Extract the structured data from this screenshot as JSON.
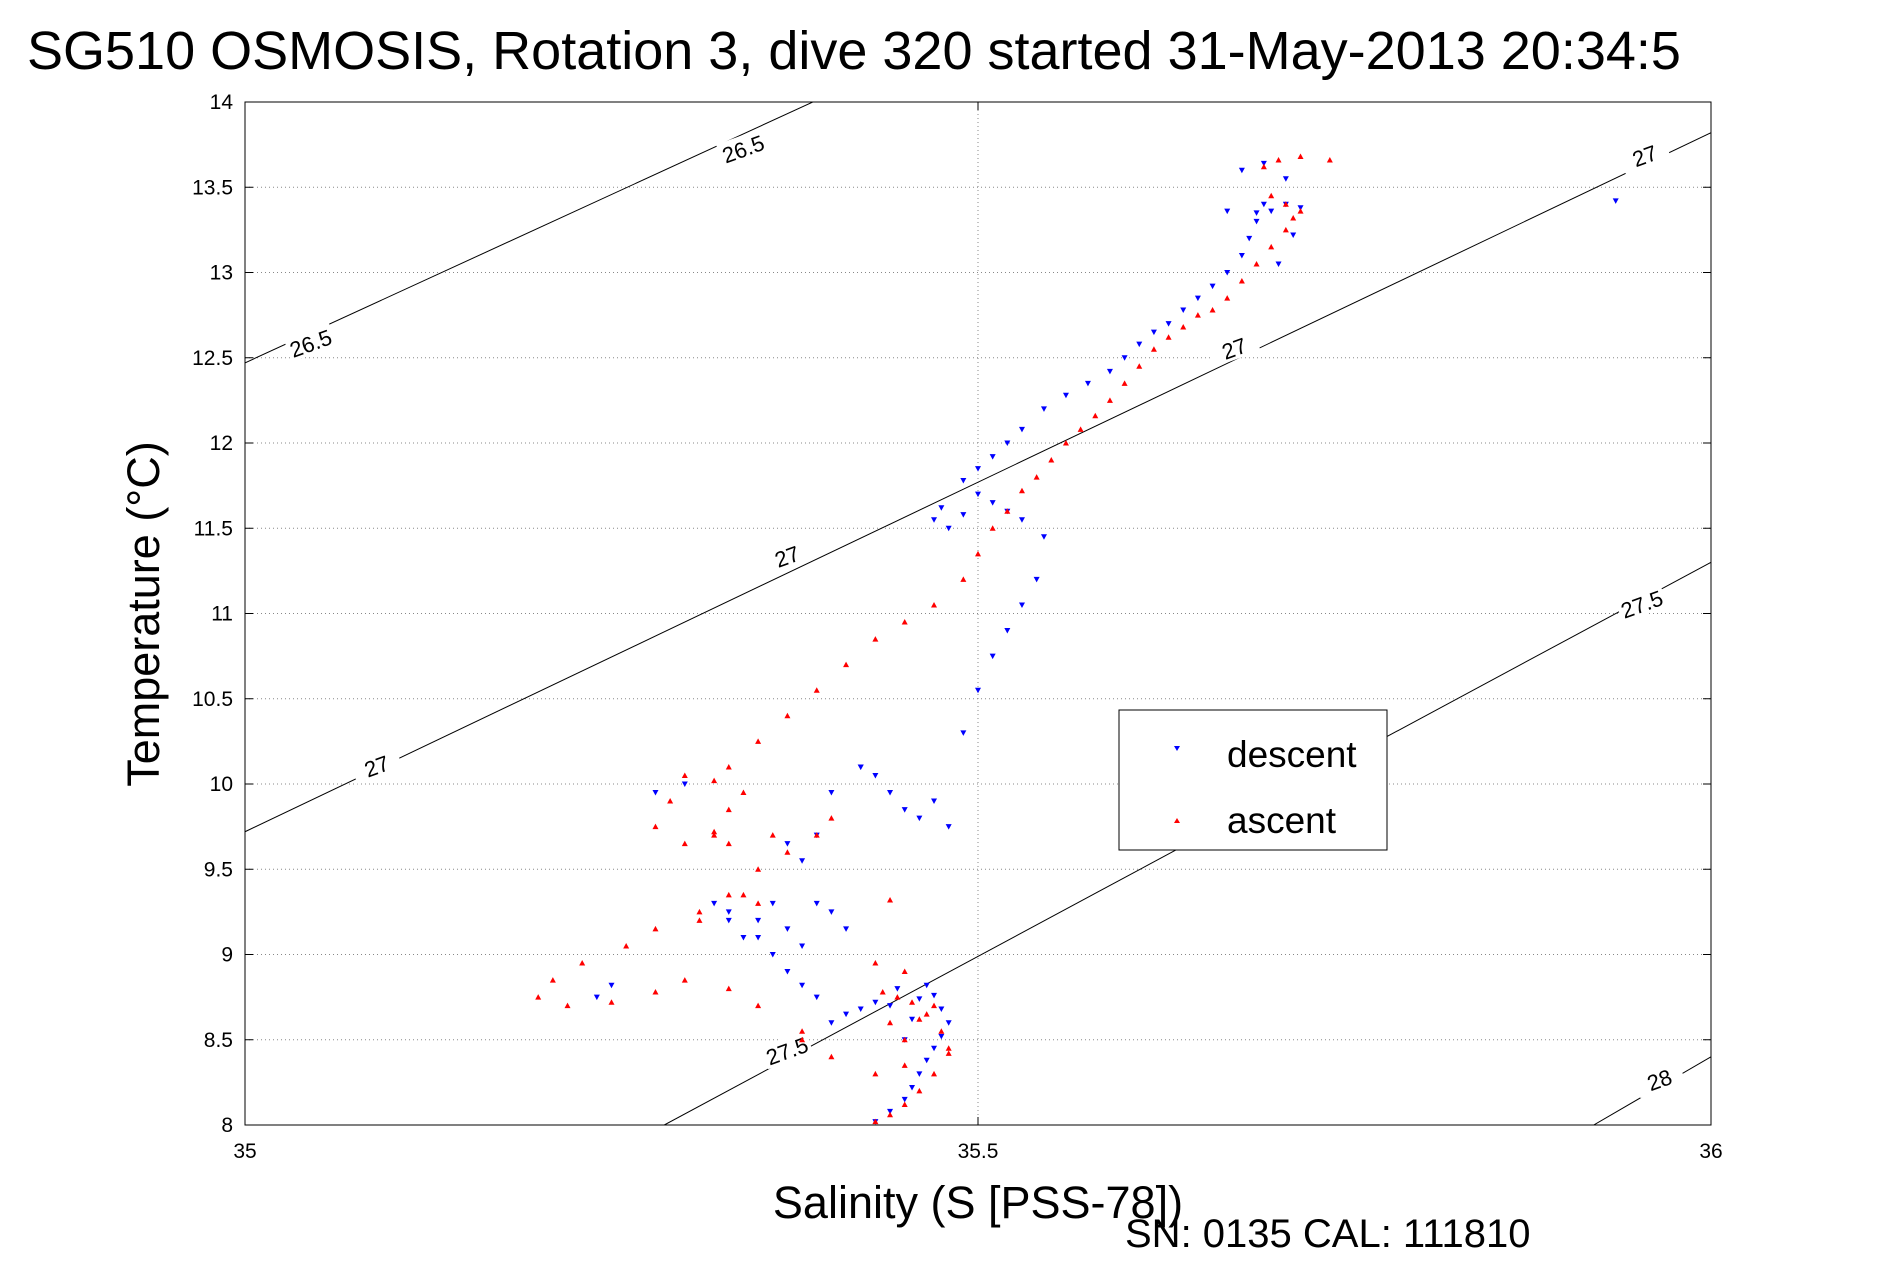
{
  "figure": {
    "title": "SG510 OSMOSIS, Rotation 3, dive 320 started 31-May-2013 20:34:5",
    "footer": "SN: 0135  CAL: 111810"
  },
  "chart_data": {
    "type": "scatter",
    "title": "SG510 OSMOSIS, Rotation 3, dive 320 started 31-May-2013 20:34:5",
    "xlabel": "Salinity (S [PSS-78])",
    "ylabel": "Temperature (°C)",
    "xlim": [
      35,
      36
    ],
    "ylim": [
      8,
      14
    ],
    "x_ticks": [
      "35",
      "35.5",
      "36"
    ],
    "y_ticks": [
      "8",
      "8.5",
      "9",
      "9.5",
      "10",
      "10.5",
      "11",
      "11.5",
      "12",
      "12.5",
      "13",
      "13.5",
      "14"
    ],
    "grid": true,
    "legend_position": "center-right",
    "legend": [
      "descent",
      "ascent"
    ],
    "colors": {
      "descent": "#0000ff",
      "ascent": "#ff0000",
      "contour": "#000000"
    },
    "density_contours": [
      {
        "label": "26.5",
        "points": [
          [
            35.0,
            12.47
          ],
          [
            35.4,
            14.05
          ]
        ]
      },
      {
        "label": "27",
        "points": [
          [
            35.0,
            9.72
          ],
          [
            36.0,
            13.82
          ]
        ]
      },
      {
        "label": "27.5",
        "points": [
          [
            35.286,
            8.0
          ],
          [
            36.0,
            11.3
          ]
        ]
      },
      {
        "label": "28",
        "points": [
          [
            35.92,
            8.0
          ],
          [
            36.0,
            8.4
          ]
        ]
      }
    ],
    "contour_labels": [
      {
        "text": "26.5",
        "x": 35.34,
        "y": 13.72,
        "angle": -20
      },
      {
        "text": "26.5",
        "x": 35.045,
        "y": 12.58,
        "angle": -20
      },
      {
        "text": "27",
        "x": 35.37,
        "y": 11.33,
        "angle": -20
      },
      {
        "text": "27",
        "x": 35.09,
        "y": 10.1,
        "angle": -20
      },
      {
        "text": "27",
        "x": 35.675,
        "y": 12.55,
        "angle": -20
      },
      {
        "text": "27",
        "x": 35.955,
        "y": 13.68,
        "angle": -20
      },
      {
        "text": "27.5",
        "x": 35.37,
        "y": 8.43,
        "angle": -20
      },
      {
        "text": "27.5",
        "x": 35.953,
        "y": 11.05,
        "angle": -20
      },
      {
        "text": "28",
        "x": 35.965,
        "y": 8.26,
        "angle": -20
      }
    ],
    "series": [
      {
        "name": "descent",
        "marker": "triangle-down",
        "color": "#0000ff",
        "x": [
          35.43,
          35.44,
          35.45,
          35.455,
          35.46,
          35.465,
          35.47,
          35.475,
          35.48,
          35.475,
          35.47,
          35.465,
          35.46,
          35.455,
          35.45,
          35.445,
          35.44,
          35.43,
          35.42,
          35.41,
          35.4,
          35.39,
          35.38,
          35.37,
          35.36,
          35.35,
          35.33,
          35.32,
          35.33,
          35.34,
          35.35,
          35.36,
          35.37,
          35.38,
          35.39,
          35.4,
          35.41,
          35.42,
          35.43,
          35.44,
          35.45,
          35.46,
          35.47,
          35.48,
          35.49,
          35.5,
          35.51,
          35.52,
          35.53,
          35.54,
          35.545,
          35.53,
          35.52,
          35.51,
          35.5,
          35.49,
          35.48,
          35.47,
          35.475,
          35.49,
          35.5,
          35.51,
          35.52,
          35.53,
          35.545,
          35.56,
          35.575,
          35.59,
          35.6,
          35.61,
          35.62,
          35.63,
          35.64,
          35.65,
          35.66,
          35.67,
          35.68,
          35.685,
          35.69,
          35.695,
          35.7,
          35.71,
          35.72,
          35.69,
          35.67,
          35.68,
          35.695,
          35.71,
          35.715,
          35.705,
          35.935,
          35.28,
          35.3,
          35.25,
          35.24,
          35.42,
          35.4,
          35.37,
          35.38,
          35.39
        ],
        "y": [
          8.02,
          8.08,
          8.15,
          8.22,
          8.3,
          8.38,
          8.45,
          8.52,
          8.6,
          8.68,
          8.76,
          8.82,
          8.74,
          8.62,
          8.5,
          8.8,
          8.7,
          8.72,
          8.68,
          8.65,
          8.6,
          8.75,
          8.82,
          8.9,
          9.0,
          9.1,
          9.2,
          9.3,
          9.25,
          9.1,
          9.2,
          9.3,
          9.15,
          9.05,
          9.3,
          9.25,
          9.15,
          10.1,
          10.05,
          9.95,
          9.85,
          9.8,
          9.9,
          9.75,
          10.3,
          10.55,
          10.75,
          10.9,
          11.05,
          11.2,
          11.45,
          11.55,
          11.6,
          11.65,
          11.7,
          11.58,
          11.5,
          11.55,
          11.62,
          11.78,
          11.85,
          11.92,
          12.0,
          12.08,
          12.2,
          12.28,
          12.35,
          12.42,
          12.5,
          12.58,
          12.65,
          12.7,
          12.78,
          12.85,
          12.92,
          13.0,
          13.1,
          13.2,
          13.3,
          13.4,
          13.36,
          13.4,
          13.38,
          13.35,
          13.36,
          13.6,
          13.64,
          13.55,
          13.22,
          13.05,
          13.42,
          9.95,
          10.0,
          8.82,
          8.75,
          10.1,
          9.95,
          9.65,
          9.55,
          9.7
        ]
      },
      {
        "name": "ascent",
        "marker": "triangle-up",
        "color": "#ff0000",
        "x": [
          35.43,
          35.44,
          35.45,
          35.46,
          35.47,
          35.48,
          35.475,
          35.465,
          35.455,
          35.445,
          35.435,
          35.44,
          35.45,
          35.46,
          35.47,
          35.48,
          35.45,
          35.43,
          35.4,
          35.38,
          35.35,
          35.33,
          35.3,
          35.28,
          35.25,
          35.22,
          35.2,
          35.21,
          35.23,
          35.26,
          35.28,
          35.31,
          35.33,
          35.35,
          35.37,
          35.39,
          35.4,
          35.36,
          35.33,
          35.32,
          35.33,
          35.34,
          35.32,
          35.3,
          35.29,
          35.28,
          35.3,
          35.32,
          35.33,
          35.35,
          35.37,
          35.39,
          35.41,
          35.43,
          35.45,
          35.47,
          35.49,
          35.5,
          35.51,
          35.52,
          35.53,
          35.54,
          35.55,
          35.56,
          35.57,
          35.58,
          35.59,
          35.6,
          35.61,
          35.62,
          35.63,
          35.64,
          35.65,
          35.66,
          35.67,
          35.68,
          35.69,
          35.7,
          35.71,
          35.715,
          35.72,
          35.71,
          35.7,
          35.695,
          35.705,
          35.72,
          35.74,
          35.35,
          35.34,
          35.31,
          35.44,
          35.45,
          35.43,
          35.38
        ],
        "y": [
          8.02,
          8.06,
          8.12,
          8.2,
          8.3,
          8.42,
          8.55,
          8.65,
          8.72,
          8.75,
          8.78,
          8.6,
          8.5,
          8.62,
          8.7,
          8.45,
          8.35,
          8.3,
          8.4,
          8.55,
          8.7,
          8.8,
          8.85,
          8.78,
          8.72,
          8.7,
          8.75,
          8.85,
          8.95,
          9.05,
          9.15,
          9.25,
          9.35,
          9.5,
          9.6,
          9.7,
          9.8,
          9.7,
          9.65,
          9.72,
          9.85,
          9.95,
          10.02,
          10.05,
          9.9,
          9.75,
          9.65,
          9.7,
          10.1,
          10.25,
          10.4,
          10.55,
          10.7,
          10.85,
          10.95,
          11.05,
          11.2,
          11.35,
          11.5,
          11.6,
          11.72,
          11.8,
          11.9,
          12.0,
          12.08,
          12.16,
          12.25,
          12.35,
          12.45,
          12.55,
          12.62,
          12.68,
          12.75,
          12.78,
          12.85,
          12.95,
          13.05,
          13.15,
          13.25,
          13.32,
          13.36,
          13.4,
          13.45,
          13.62,
          13.66,
          13.68,
          13.66,
          9.3,
          9.35,
          9.2,
          9.32,
          8.9,
          8.95,
          8.5
        ]
      }
    ]
  }
}
